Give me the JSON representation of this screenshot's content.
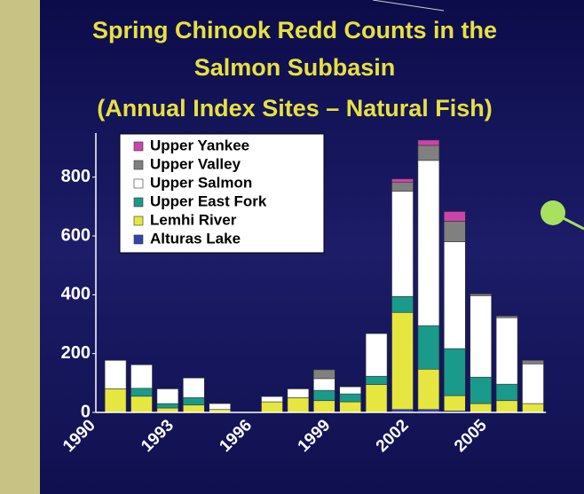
{
  "chart_data": {
    "type": "bar",
    "stacked": true,
    "title": [
      "Spring Chinook Redd Counts in the",
      "Salmon Subbasin",
      "(Annual Index Sites – Natural Fish)"
    ],
    "categories": [
      "1990",
      null,
      null,
      "1993",
      null,
      null,
      "1996",
      null,
      null,
      "1999",
      null,
      null,
      "2002",
      null,
      null,
      "2005",
      null,
      null
    ],
    "series": [
      {
        "name": "Alturas Lake",
        "color": "#3344aa",
        "values": [
          0,
          0,
          0,
          0,
          0,
          0,
          0,
          0,
          0,
          0,
          0,
          0,
          10,
          10,
          5,
          0,
          0,
          0
        ]
      },
      {
        "name": "Lemhi River",
        "color": "#e6e640",
        "values": [
          0,
          80,
          55,
          15,
          25,
          10,
          0,
          36,
          50,
          40,
          36,
          95,
          330,
          137,
          52,
          30,
          40,
          30
        ]
      },
      {
        "name": "Upper East Fork",
        "color": "#1a9a8a",
        "values": [
          0,
          0,
          27,
          15,
          25,
          0,
          0,
          0,
          0,
          35,
          27,
          28,
          54,
          148,
          160,
          90,
          56,
          0
        ]
      },
      {
        "name": "Upper Salmon",
        "color": "#ffffff",
        "values": [
          0,
          97,
          80,
          50,
          67,
          20,
          0,
          18,
          30,
          40,
          24,
          145,
          358,
          562,
          363,
          277,
          226,
          135
        ]
      },
      {
        "name": "Upper Valley",
        "color": "#808080",
        "values": [
          0,
          0,
          0,
          0,
          0,
          0,
          0,
          0,
          0,
          30,
          0,
          0,
          30,
          51,
          70,
          6,
          6,
          12
        ]
      },
      {
        "name": "Upper Yankee",
        "color": "#cc44aa",
        "values": [
          0,
          0,
          0,
          0,
          0,
          0,
          0,
          0,
          0,
          0,
          0,
          0,
          12,
          18,
          33,
          0,
          0,
          0
        ]
      }
    ],
    "ylim": [
      0,
      950
    ],
    "yticks": [
      0,
      200,
      400,
      600,
      800
    ],
    "grid": false,
    "legend": "upper left"
  }
}
